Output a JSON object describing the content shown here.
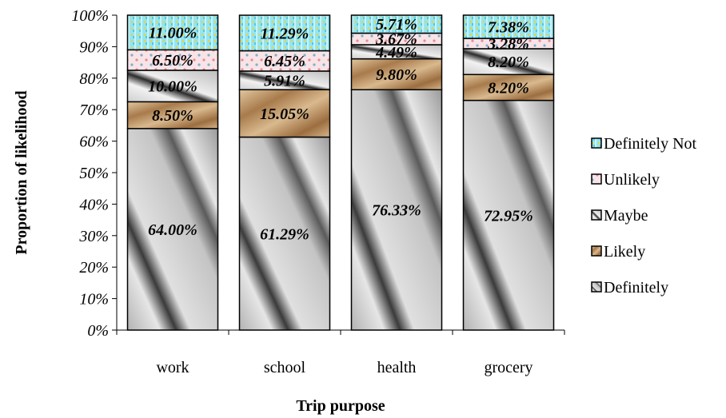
{
  "chart_data": {
    "type": "bar",
    "stacked": true,
    "categories": [
      "work",
      "school",
      "health",
      "grocery"
    ],
    "series": [
      {
        "name": "Definitely",
        "values": [
          64.0,
          61.29,
          76.33,
          72.95
        ],
        "labels": [
          "64.00%",
          "61.29%",
          "76.33%",
          "72.95%"
        ],
        "color": "#c8c8c8"
      },
      {
        "name": "Likely",
        "values": [
          8.5,
          15.05,
          9.8,
          8.2
        ],
        "labels": [
          "8.50%",
          "15.05%",
          "9.80%",
          "8.20%"
        ],
        "color": "#c9a77c"
      },
      {
        "name": "Maybe",
        "values": [
          10.0,
          5.91,
          4.49,
          8.2
        ],
        "labels": [
          "10.00%",
          "5.91%",
          "4.49%",
          "8.20%"
        ],
        "color": "#d9d9d9"
      },
      {
        "name": "Unlikely",
        "values": [
          6.5,
          6.45,
          3.67,
          3.28
        ],
        "labels": [
          "6.50%",
          "6.45%",
          "3.67%",
          "3.28%"
        ],
        "color": "#f6d9de"
      },
      {
        "name": "Definitely Not",
        "values": [
          11.0,
          11.29,
          5.71,
          7.38
        ],
        "labels": [
          "11.00%",
          "11.29%",
          "5.71%",
          "7.38%"
        ],
        "color": "#8fe3ef"
      }
    ],
    "yticks": [
      "0%",
      "10%",
      "20%",
      "30%",
      "40%",
      "50%",
      "60%",
      "70%",
      "80%",
      "90%",
      "100%"
    ],
    "ylim": [
      0,
      100
    ],
    "xlabel": "Trip purpose",
    "ylabel": "Proportion of likelihood",
    "legend_position": "right",
    "legend_order": [
      "Definitely Not",
      "Unlikely",
      "Maybe",
      "Likely",
      "Definitely"
    ],
    "grid": false
  }
}
